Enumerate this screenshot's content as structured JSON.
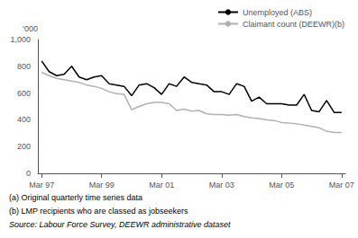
{
  "chart_data": {
    "type": "line",
    "ylabel": "'000",
    "categories": [
      "Mar 97",
      null,
      null,
      null,
      null,
      null,
      null,
      null,
      "Mar 99",
      null,
      null,
      null,
      null,
      null,
      null,
      null,
      "Mar 01",
      null,
      null,
      null,
      null,
      null,
      null,
      null,
      "Mar 03",
      null,
      null,
      null,
      null,
      null,
      null,
      null,
      "Mar 05",
      null,
      null,
      null,
      null,
      null,
      null,
      null,
      "Mar 07"
    ],
    "series": [
      {
        "name": "Unemployed (ABS)",
        "color": "#000000",
        "values": [
          840,
          760,
          730,
          740,
          800,
          720,
          700,
          720,
          730,
          670,
          660,
          650,
          580,
          660,
          670,
          640,
          590,
          670,
          650,
          720,
          680,
          670,
          660,
          610,
          610,
          590,
          670,
          650,
          540,
          570,
          520,
          520,
          520,
          510,
          510,
          590,
          470,
          460,
          545,
          455,
          455
        ]
      },
      {
        "name": "Claimant count (DEEWR)(b)",
        "color": "#b0b0b0",
        "values": [
          755,
          730,
          710,
          700,
          690,
          680,
          660,
          650,
          635,
          610,
          595,
          590,
          475,
          500,
          520,
          530,
          530,
          520,
          470,
          480,
          465,
          470,
          445,
          440,
          440,
          435,
          440,
          425,
          415,
          410,
          400,
          395,
          380,
          375,
          370,
          360,
          350,
          340,
          315,
          305,
          305
        ]
      }
    ],
    "ylim": [
      0,
      1000
    ],
    "yticks": [
      0,
      200,
      400,
      600,
      800,
      1000
    ],
    "grid": false,
    "legend": "upper right",
    "annotations": [
      "(a) Original quarterly time series data",
      "(b) LMP recipients who are classed as jobseekers",
      "Source: Labour Force Survey, DEEWR administrative dataset"
    ]
  }
}
